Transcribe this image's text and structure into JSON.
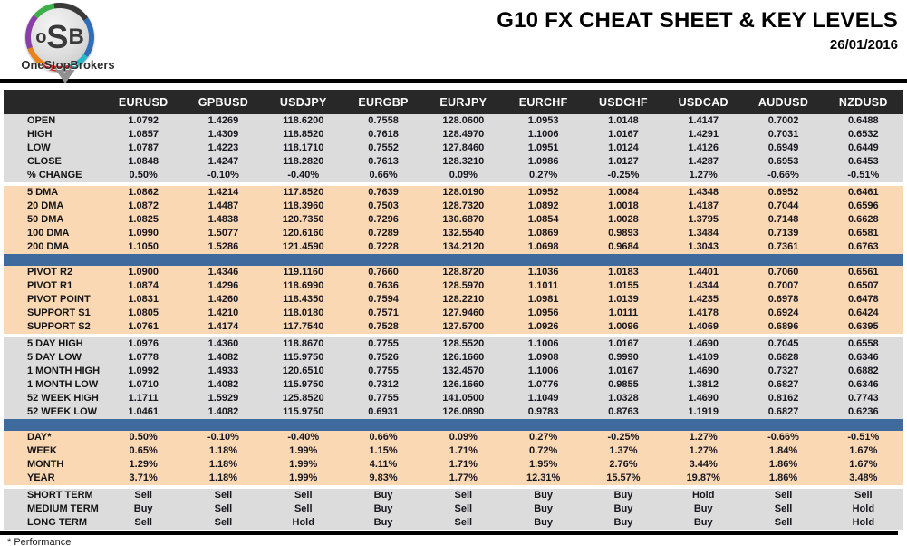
{
  "header": {
    "title": "G10 FX CHEAT SHEET & KEY LEVELS",
    "date": "26/01/2016",
    "logo": {
      "letter_o": "o",
      "letter_s": "S",
      "letter_b": "B",
      "brand": "OneStopBrokers"
    }
  },
  "colors": {
    "header_bar": "#282828",
    "section_gray": "#dcdcdc",
    "section_peach": "#fbd8b4",
    "divider_blue": "#3e6a9d",
    "buy_green": "#00a651",
    "sell_red": "#ee1c25",
    "hold_blue": "#3a64a0",
    "pivot_navy": "#1f3b67"
  },
  "table": {
    "columns": [
      "EURUSD",
      "GPBUSD",
      "USDJPY",
      "EURGBP",
      "EURJPY",
      "EURCHF",
      "USDCHF",
      "USDCAD",
      "AUDUSD",
      "NZDUSD"
    ],
    "sections": [
      {
        "id": "quotes",
        "bg": "gray",
        "after": "gap",
        "rows": [
          {
            "label": "OPEN",
            "values": [
              "1.0792",
              "1.4269",
              "118.6200",
              "0.7558",
              "128.0600",
              "1.0953",
              "1.0148",
              "1.4147",
              "0.7002",
              "0.6488"
            ]
          },
          {
            "label": "HIGH",
            "values": [
              "1.0857",
              "1.4309",
              "118.8520",
              "0.7618",
              "128.4970",
              "1.1006",
              "1.0167",
              "1.4291",
              "0.7031",
              "0.6532"
            ]
          },
          {
            "label": "LOW",
            "values": [
              "1.0787",
              "1.4223",
              "118.1710",
              "0.7552",
              "127.8460",
              "1.0951",
              "1.0124",
              "1.4126",
              "0.6949",
              "0.6449"
            ]
          },
          {
            "label": "CLOSE",
            "values": [
              "1.0848",
              "1.4247",
              "118.2820",
              "0.7613",
              "128.3210",
              "1.0986",
              "1.0127",
              "1.4287",
              "0.6953",
              "0.6453"
            ]
          },
          {
            "label": "% CHANGE",
            "values": [
              "0.50%",
              "-0.10%",
              "-0.40%",
              "0.66%",
              "0.09%",
              "0.27%",
              "-0.25%",
              "1.27%",
              "-0.66%",
              "-0.51%"
            ]
          }
        ]
      },
      {
        "id": "dma",
        "bg": "peach",
        "after": "bar",
        "rows": [
          {
            "label": "5 DMA",
            "values": [
              "1.0862",
              "1.4214",
              "117.8520",
              "0.7639",
              "128.0190",
              "1.0952",
              "1.0084",
              "1.4348",
              "0.6952",
              "0.6461"
            ]
          },
          {
            "label": "20 DMA",
            "values": [
              "1.0872",
              "1.4487",
              "118.3960",
              "0.7503",
              "128.7320",
              "1.0892",
              "1.0018",
              "1.4187",
              "0.7044",
              "0.6596"
            ]
          },
          {
            "label": "50 DMA",
            "values": [
              "1.0825",
              "1.4838",
              "120.7350",
              "0.7296",
              "130.6870",
              "1.0854",
              "1.0028",
              "1.3795",
              "0.7148",
              "0.6628"
            ]
          },
          {
            "label": "100 DMA",
            "values": [
              "1.0990",
              "1.5077",
              "120.6160",
              "0.7289",
              "132.5540",
              "1.0869",
              "0.9893",
              "1.3484",
              "0.7139",
              "0.6581"
            ]
          },
          {
            "label": "200 DMA",
            "values": [
              "1.1050",
              "1.5286",
              "121.4590",
              "0.7228",
              "134.2120",
              "1.0698",
              "0.9684",
              "1.3043",
              "0.7361",
              "0.6763"
            ]
          }
        ]
      },
      {
        "id": "pivots",
        "bg": "peach",
        "after": "gap",
        "rows": [
          {
            "label": "PIVOT R2",
            "label_color": "green",
            "values": [
              "1.0900",
              "1.4346",
              "119.1160",
              "0.7660",
              "128.8720",
              "1.1036",
              "1.0183",
              "1.4401",
              "0.7060",
              "0.6561"
            ]
          },
          {
            "label": "PIVOT R1",
            "label_color": "green",
            "values": [
              "1.0874",
              "1.4296",
              "118.6990",
              "0.7636",
              "128.5970",
              "1.1011",
              "1.0155",
              "1.4344",
              "0.7007",
              "0.6507"
            ]
          },
          {
            "label": "PIVOT POINT",
            "label_color": "navy",
            "values": [
              "1.0831",
              "1.4260",
              "118.4350",
              "0.7594",
              "128.2210",
              "1.0981",
              "1.0139",
              "1.4235",
              "0.6978",
              "0.6478"
            ]
          },
          {
            "label": "SUPPORT S1",
            "label_color": "red",
            "values": [
              "1.0805",
              "1.4210",
              "118.0180",
              "0.7571",
              "127.9460",
              "1.0956",
              "1.0111",
              "1.4178",
              "0.6924",
              "0.6424"
            ]
          },
          {
            "label": "SUPPORT S2",
            "label_color": "red",
            "values": [
              "1.0761",
              "1.4174",
              "117.7540",
              "0.7528",
              "127.5700",
              "1.0926",
              "1.0096",
              "1.4069",
              "0.6896",
              "0.6395"
            ]
          }
        ]
      },
      {
        "id": "ranges",
        "bg": "gray",
        "after": "bar",
        "rows": [
          {
            "label": "5 DAY HIGH",
            "values": [
              "1.0976",
              "1.4360",
              "118.8670",
              "0.7755",
              "128.5520",
              "1.1006",
              "1.0167",
              "1.4690",
              "0.7045",
              "0.6558"
            ]
          },
          {
            "label": "5 DAY LOW",
            "values": [
              "1.0778",
              "1.4082",
              "115.9750",
              "0.7526",
              "126.1660",
              "1.0908",
              "0.9990",
              "1.4109",
              "0.6828",
              "0.6346"
            ]
          },
          {
            "label": "1 MONTH HIGH",
            "values": [
              "1.0992",
              "1.4933",
              "120.6510",
              "0.7755",
              "132.4570",
              "1.1006",
              "1.0167",
              "1.4690",
              "0.7327",
              "0.6882"
            ]
          },
          {
            "label": "1 MONTH LOW",
            "values": [
              "1.0710",
              "1.4082",
              "115.9750",
              "0.7312",
              "126.1660",
              "1.0776",
              "0.9855",
              "1.3812",
              "0.6827",
              "0.6346"
            ]
          },
          {
            "label": "52 WEEK HIGH",
            "values": [
              "1.1711",
              "1.5929",
              "125.8520",
              "0.7755",
              "141.0500",
              "1.1049",
              "1.0328",
              "1.4690",
              "0.8162",
              "0.7743"
            ]
          },
          {
            "label": "52 WEEK LOW",
            "values": [
              "1.0461",
              "1.4082",
              "115.9750",
              "0.6931",
              "126.0890",
              "0.9783",
              "0.8763",
              "1.1919",
              "0.6827",
              "0.6236"
            ]
          }
        ]
      },
      {
        "id": "performance",
        "bg": "peach",
        "after": "gap",
        "rows": [
          {
            "label": "DAY*",
            "values": [
              "0.50%",
              "-0.10%",
              "-0.40%",
              "0.66%",
              "0.09%",
              "0.27%",
              "-0.25%",
              "1.27%",
              "-0.66%",
              "-0.51%"
            ]
          },
          {
            "label": "WEEK",
            "values": [
              "0.65%",
              "1.18%",
              "1.99%",
              "1.15%",
              "1.71%",
              "0.72%",
              "1.37%",
              "1.27%",
              "1.84%",
              "1.67%"
            ]
          },
          {
            "label": "MONTH",
            "values": [
              "1.29%",
              "1.18%",
              "1.99%",
              "4.11%",
              "1.71%",
              "1.95%",
              "2.76%",
              "3.44%",
              "1.86%",
              "1.67%"
            ]
          },
          {
            "label": "YEAR",
            "values": [
              "3.71%",
              "1.18%",
              "1.99%",
              "9.83%",
              "1.77%",
              "12.31%",
              "15.57%",
              "19.87%",
              "1.86%",
              "3.48%"
            ]
          }
        ]
      },
      {
        "id": "signals",
        "bg": "gray",
        "signal": true,
        "after": "none",
        "rows": [
          {
            "label": "SHORT TERM",
            "values": [
              "Sell",
              "Sell",
              "Sell",
              "Buy",
              "Sell",
              "Buy",
              "Buy",
              "Hold",
              "Sell",
              "Sell"
            ]
          },
          {
            "label": "MEDIUM TERM",
            "values": [
              "Buy",
              "Sell",
              "Sell",
              "Buy",
              "Sell",
              "Buy",
              "Buy",
              "Buy",
              "Sell",
              "Hold"
            ]
          },
          {
            "label": "LONG TERM",
            "values": [
              "Sell",
              "Sell",
              "Hold",
              "Buy",
              "Sell",
              "Buy",
              "Buy",
              "Buy",
              "Sell",
              "Hold"
            ]
          }
        ]
      }
    ]
  },
  "footer": {
    "note": "* Performance"
  }
}
